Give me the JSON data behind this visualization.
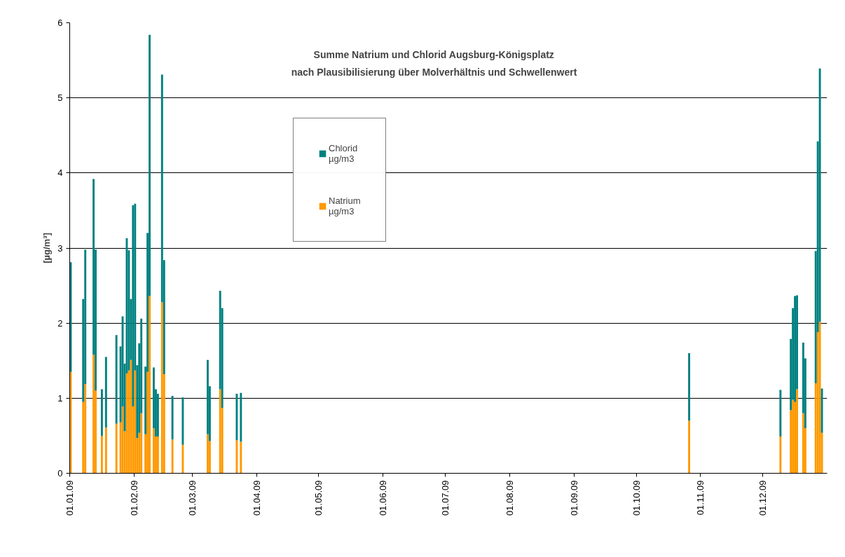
{
  "chart_data": {
    "type": "bar",
    "stacked": true,
    "title": "Summe Natrium und Chlorid Augsburg-Königsplatz",
    "subtitle": "nach Plausibilisierung über Molverhältnis und Schwellenwert",
    "ylabel": "[µg/m³]",
    "x": [
      "2009-01-01",
      "2009-01-07",
      "2009-01-08",
      "2009-01-12",
      "2009-01-13",
      "2009-01-16",
      "2009-01-18",
      "2009-01-23",
      "2009-01-25",
      "2009-01-26",
      "2009-01-27",
      "2009-01-28",
      "2009-01-29",
      "2009-01-30",
      "2009-01-31",
      "2009-02-01",
      "2009-02-02",
      "2009-02-03",
      "2009-02-04",
      "2009-02-06",
      "2009-02-07",
      "2009-02-08",
      "2009-02-10",
      "2009-02-11",
      "2009-02-12",
      "2009-02-14",
      "2009-02-15",
      "2009-02-19",
      "2009-02-24",
      "2009-03-08",
      "2009-03-09",
      "2009-03-14",
      "2009-03-15",
      "2009-03-22",
      "2009-03-24",
      "2009-10-26",
      "2009-12-09",
      "2009-12-14",
      "2009-12-15",
      "2009-12-16",
      "2009-12-17",
      "2009-12-20",
      "2009-12-21",
      "2009-12-26",
      "2009-12-27",
      "2009-12-28",
      "2009-12-29"
    ],
    "series": [
      {
        "name": "Natrium µg/m3",
        "color": "#ff9900",
        "values": [
          1.35,
          0.95,
          1.19,
          1.58,
          1.1,
          0.5,
          0.61,
          0.66,
          0.68,
          0.89,
          0.56,
          1.33,
          1.37,
          1.51,
          0.89,
          1.37,
          0.47,
          0.54,
          0.8,
          0.52,
          1.35,
          2.36,
          0.6,
          0.49,
          0.49,
          2.28,
          1.32,
          0.45,
          0.38,
          0.52,
          0.43,
          1.12,
          0.87,
          0.44,
          0.42,
          0.7,
          0.49,
          0.84,
          0.98,
          0.95,
          1.12,
          0.8,
          0.6,
          1.2,
          1.88,
          2.02,
          0.54
        ]
      },
      {
        "name": "Chlorid µg/m3",
        "color": "#008080",
        "values": [
          1.46,
          1.37,
          1.79,
          2.34,
          1.88,
          0.62,
          0.94,
          1.18,
          1.01,
          1.2,
          0.9,
          1.8,
          1.6,
          0.81,
          2.68,
          2.22,
          0.97,
          1.19,
          1.26,
          0.9,
          1.85,
          3.48,
          0.81,
          0.63,
          0.57,
          3.03,
          1.52,
          0.58,
          0.63,
          0.99,
          0.73,
          1.31,
          1.33,
          0.62,
          0.65,
          0.9,
          0.62,
          0.95,
          1.22,
          1.41,
          1.25,
          0.94,
          0.93,
          1.76,
          2.54,
          3.37,
          0.59
        ]
      }
    ],
    "xlim": [
      "2009-01-01",
      "2010-01-01"
    ],
    "xticks": [
      {
        "value": "2009-01-01",
        "label": "01.01.09"
      },
      {
        "value": "2009-02-01",
        "label": "01.02.09"
      },
      {
        "value": "2009-03-01",
        "label": "01.03.09"
      },
      {
        "value": "2009-04-01",
        "label": "01.04.09"
      },
      {
        "value": "2009-05-01",
        "label": "01.05.09"
      },
      {
        "value": "2009-06-01",
        "label": "01.06.09"
      },
      {
        "value": "2009-07-01",
        "label": "01.07.09"
      },
      {
        "value": "2009-08-01",
        "label": "01.08.09"
      },
      {
        "value": "2009-09-01",
        "label": "01.09.09"
      },
      {
        "value": "2009-10-01",
        "label": "01.10.09"
      },
      {
        "value": "2009-11-01",
        "label": "01.11.09"
      },
      {
        "value": "2009-12-01",
        "label": "01.12.09"
      }
    ],
    "ylim": [
      0,
      6
    ],
    "yticks": [
      0,
      1,
      2,
      3,
      4,
      5,
      6
    ],
    "grid": "y",
    "legend": "top"
  }
}
